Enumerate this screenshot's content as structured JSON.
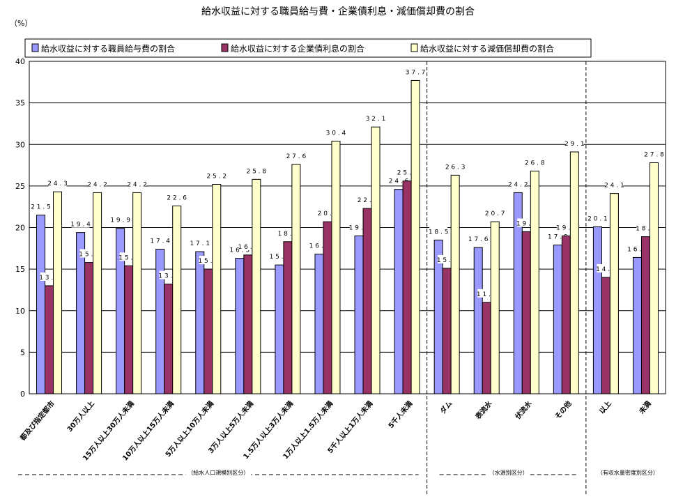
{
  "chart_data": {
    "type": "bar",
    "title": "給水収益に対する職員給与費・企業債利息・減価償却費の割合",
    "ylabel": "（%）",
    "ylim": [
      0,
      40
    ],
    "yticks": [
      0,
      5,
      10,
      15,
      20,
      25,
      30,
      35,
      40
    ],
    "grid": true,
    "legend_position": "top",
    "categories": [
      "都及び指定都市",
      "30万人以上",
      "15万人以上30万人未満",
      "10万人以上15万人未満",
      "5万人以上10万人未満",
      "3万人以上5万人未満",
      "1.5万人以上3万人未満",
      "1万人以上1.5万人未満",
      "5千人以上1万人未満",
      "5千人未満",
      "ダム",
      "表流水",
      "伏流水",
      "その他",
      "以上",
      "未満"
    ],
    "series": [
      {
        "name": "給水収益に対する職員給与費の割合",
        "color": "#9999ff",
        "values": [
          21.5,
          19.4,
          19.9,
          17.4,
          17.1,
          16.3,
          15.5,
          16.8,
          19.0,
          24.6,
          18.5,
          17.6,
          24.2,
          17.9,
          20.1,
          16.4
        ]
      },
      {
        "name": "給水収益に対する企業債利息の割合",
        "color": "#993366",
        "values": [
          13.0,
          15.8,
          15.4,
          13.2,
          15.0,
          16.7,
          18.3,
          20.7,
          22.3,
          25.6,
          15.1,
          11.0,
          19.5,
          19.0,
          14.0,
          18.9
        ]
      },
      {
        "name": "給水収益に対する減価償却費の割合",
        "color": "#ffffcc",
        "values": [
          24.3,
          24.2,
          24.2,
          22.6,
          25.2,
          25.8,
          27.6,
          30.4,
          32.1,
          37.7,
          26.3,
          20.7,
          26.8,
          29.1,
          24.1,
          27.8
        ]
      }
    ],
    "groups": [
      {
        "label": "（給水人口規模別区分）",
        "start": 0,
        "end": 9
      },
      {
        "label": "（水源別区分）",
        "start": 10,
        "end": 13
      },
      {
        "label": "（有収水量密度別区分）",
        "start": 14,
        "end": 15
      }
    ]
  }
}
